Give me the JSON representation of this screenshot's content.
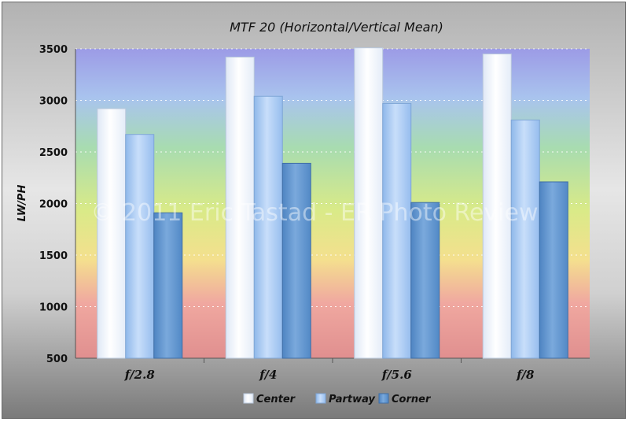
{
  "chart_data": {
    "type": "bar",
    "title": "MTF 20 (Horizontal/Vertical Mean)",
    "xlabel": "",
    "ylabel": "LW/PH",
    "categories": [
      "f/2.8",
      "f/4",
      "f/5.6",
      "f/8"
    ],
    "series": [
      {
        "name": "Center",
        "values": [
          2920,
          3420,
          3510,
          3450
        ]
      },
      {
        "name": "Partway",
        "values": [
          2670,
          3040,
          2970,
          2810
        ]
      },
      {
        "name": "Corner",
        "values": [
          1910,
          2390,
          2010,
          2210
        ]
      }
    ],
    "ylim": [
      500,
      3500
    ],
    "yticks": [
      500,
      1000,
      1500,
      2000,
      2500,
      3000,
      3500
    ],
    "grid": true,
    "legend": "bottom",
    "watermark": "© 2011 Eric Tastad - ER Photo Review",
    "colors": {
      "Center": "#eef4fc",
      "Partway": "#9ec4ee",
      "Corner": "#5a8fc8"
    }
  }
}
